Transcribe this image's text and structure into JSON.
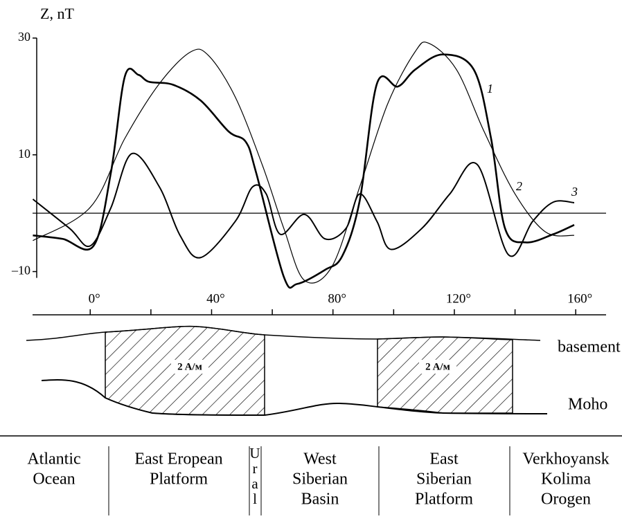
{
  "chart_data": {
    "type": "line",
    "y_label": "Z, nT",
    "xlim": [
      -19,
      170
    ],
    "ylim": [
      -12.5,
      30.5
    ],
    "xticks": [
      {
        "value": 0,
        "label": "0°"
      },
      {
        "value": 40,
        "label": "40°"
      },
      {
        "value": 80,
        "label": "80°"
      },
      {
        "value": 120,
        "label": "120°"
      },
      {
        "value": 160,
        "label": "160°"
      }
    ],
    "xminor_ticks": [
      20,
      60,
      100,
      140
    ],
    "yticks": [
      {
        "value": -10,
        "label": "–10"
      },
      10,
      30
    ],
    "hline": 0,
    "series": [
      {
        "name": "1",
        "color": "#000000",
        "line_width": 2.6,
        "x": [
          -18.9,
          -9.1,
          1.1,
          6.8,
          11.4,
          15.9,
          19.4,
          27.3,
          36.4,
          45.6,
          51.3,
          54.7,
          63.8,
          68.3,
          77.4,
          83.1,
          88.8,
          94.5,
          101.4,
          107.1,
          116.2,
          126.4,
          132.1,
          136.7,
          143.5,
          152.6,
          159.5
        ],
        "values": [
          -3.8,
          -4.4,
          -5.6,
          6.9,
          23.4,
          23.7,
          22.5,
          22,
          19.3,
          14,
          12.2,
          6.9,
          -10.9,
          -12.1,
          -9.7,
          -7.3,
          2.1,
          22.2,
          21.7,
          24.6,
          27.2,
          24.6,
          12.8,
          -2.6,
          -5,
          -3.6,
          -2
        ]
      },
      {
        "name": "2",
        "color": "#000000",
        "line_width": 1.2,
        "x": [
          -18.9,
          0,
          11.4,
          22.8,
          33,
          39,
          47.8,
          56.9,
          63.8,
          70.6,
          79.7,
          88.8,
          98,
          107,
          111.6,
          120.7,
          129.8,
          140,
          150,
          159.5
        ],
        "values": [
          -4.7,
          1,
          12.8,
          22.2,
          27.6,
          27,
          19.9,
          8,
          -2.6,
          -11.5,
          -9.1,
          4.5,
          18.7,
          27.6,
          29.1,
          24.6,
          14,
          3.3,
          -3.2,
          -3.8
        ]
      },
      {
        "name": "3",
        "color": "#000000",
        "line_width": 2,
        "x": [
          -18.9,
          -6.8,
          0,
          6.8,
          13.7,
          22.8,
          29.6,
          36.4,
          47.8,
          53.5,
          58,
          62.6,
          70.6,
          77.4,
          84.3,
          88.8,
          94.5,
          99.1,
          109.3,
          118.5,
          127.6,
          137.8,
          145.8,
          152.6,
          159.5
        ],
        "values": [
          2.4,
          -2.6,
          -5.6,
          0.9,
          10.2,
          4.5,
          -3.8,
          -7.6,
          -1.4,
          4.5,
          3.3,
          -3.6,
          -0.2,
          -4.4,
          -2.6,
          3.3,
          -1.4,
          -6.2,
          -2.6,
          3.3,
          8.3,
          -7.1,
          -1.4,
          1.9,
          1.8
        ]
      }
    ]
  },
  "section": {
    "top_label": "basement",
    "bottom_label": "Moho",
    "blocks": [
      "2 A/м",
      "2 A/м"
    ]
  },
  "table": {
    "cells": [
      [
        "Atlantic",
        "Ocean"
      ],
      [
        "East Eropean",
        "Platform"
      ],
      [
        "U",
        "r",
        "a",
        "l"
      ],
      [
        "West",
        "Siberian",
        "Basin"
      ],
      [
        "East",
        "Siberian",
        "Platform"
      ],
      [
        "Verkhoyansk",
        "Kolima",
        "Orogen"
      ]
    ]
  }
}
